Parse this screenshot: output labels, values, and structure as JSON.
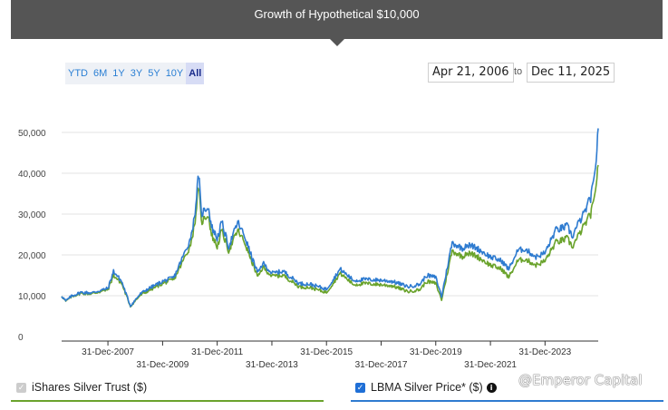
{
  "header": {
    "title": "Growth of Hypothetical $10,000"
  },
  "range_buttons": [
    "YTD",
    "6M",
    "1Y",
    "3Y",
    "5Y",
    "10Y",
    "All"
  ],
  "active_range": "All",
  "date_range": {
    "from": "Apr 21, 2006",
    "to_label": "to",
    "to": "Dec 11, 2025"
  },
  "legend": {
    "series1_label": "iShares Silver Trust ($)",
    "series2_label": "LBMA Silver Price* ($)",
    "series1_color": "#6aa32c",
    "series2_color": "#2e7bd0"
  },
  "watermark": "@Emperor Capital",
  "chart_data": {
    "type": "line",
    "ylim": [
      0,
      50000
    ],
    "yticks": [
      0,
      10000,
      20000,
      30000,
      40000,
      50000
    ],
    "ytick_labels": [
      "0",
      "10,000",
      "20,000",
      "30,000",
      "40,000",
      "50,000"
    ],
    "x_start": "2006-04-21",
    "x_end": "2025-12-11",
    "xtick_labels": [
      "31-Dec-2007",
      "31-Dec-2009",
      "31-Dec-2011",
      "31-Dec-2013",
      "31-Dec-2015",
      "31-Dec-2017",
      "31-Dec-2019",
      "31-Dec-2021",
      "31-Dec-2023"
    ],
    "xtick_dates": [
      "2007-12-31",
      "2009-12-31",
      "2011-12-31",
      "2013-12-31",
      "2015-12-31",
      "2017-12-31",
      "2019-12-31",
      "2021-12-31",
      "2023-12-31"
    ],
    "series": [
      {
        "name": "iShares Silver Trust ($)",
        "color": "#6aa32c",
        "x": [
          "2006-04-21",
          "2006-06-15",
          "2006-09-01",
          "2007-01-01",
          "2007-06-01",
          "2008-01-01",
          "2008-03-15",
          "2008-07-01",
          "2008-10-27",
          "2009-03-01",
          "2009-06-01",
          "2009-12-31",
          "2010-06-01",
          "2010-12-31",
          "2011-03-01",
          "2011-04-28",
          "2011-06-01",
          "2011-09-01",
          "2011-10-15",
          "2011-12-31",
          "2012-03-01",
          "2012-06-01",
          "2012-10-01",
          "2013-01-01",
          "2013-04-15",
          "2013-06-28",
          "2013-09-01",
          "2013-12-31",
          "2014-06-01",
          "2014-12-31",
          "2015-06-01",
          "2015-12-31",
          "2016-07-01",
          "2016-12-31",
          "2017-06-01",
          "2017-12-31",
          "2018-06-01",
          "2018-12-31",
          "2019-06-01",
          "2019-09-01",
          "2019-12-31",
          "2020-03-18",
          "2020-08-06",
          "2020-12-31",
          "2021-02-01",
          "2021-06-01",
          "2021-12-31",
          "2022-06-01",
          "2022-09-01",
          "2022-12-31",
          "2023-04-01",
          "2023-09-01",
          "2023-12-31",
          "2024-05-20",
          "2024-10-22",
          "2024-12-31",
          "2025-03-01",
          "2025-06-01",
          "2025-09-01",
          "2025-10-15",
          "2025-11-15",
          "2025-12-11"
        ],
        "y": [
          10000,
          8600,
          9800,
          10600,
          10500,
          11500,
          15000,
          13000,
          7400,
          10000,
          11000,
          13000,
          14000,
          22000,
          27000,
          37000,
          28000,
          30000,
          25000,
          22000,
          26000,
          21000,
          26000,
          23000,
          18000,
          14500,
          17000,
          14800,
          15000,
          12200,
          12000,
          10800,
          15500,
          12700,
          13000,
          12700,
          12400,
          11000,
          11500,
          13500,
          13000,
          9000,
          21000,
          19500,
          20500,
          20000,
          17500,
          16500,
          14500,
          18500,
          19000,
          17500,
          18500,
          23000,
          24000,
          22000,
          24000,
          27000,
          30000,
          33000,
          38000,
          42000
        ]
      },
      {
        "name": "LBMA Silver Price* ($)",
        "color": "#2e7bd0",
        "x": [
          "2006-04-21",
          "2006-06-15",
          "2006-09-01",
          "2007-01-01",
          "2007-06-01",
          "2008-01-01",
          "2008-03-15",
          "2008-07-01",
          "2008-10-27",
          "2009-03-01",
          "2009-06-01",
          "2009-12-31",
          "2010-06-01",
          "2010-12-31",
          "2011-03-01",
          "2011-04-28",
          "2011-06-01",
          "2011-09-01",
          "2011-10-15",
          "2011-12-31",
          "2012-03-01",
          "2012-06-01",
          "2012-10-01",
          "2013-01-01",
          "2013-04-15",
          "2013-06-28",
          "2013-09-01",
          "2013-12-31",
          "2014-06-01",
          "2014-12-31",
          "2015-06-01",
          "2015-12-31",
          "2016-07-01",
          "2016-12-31",
          "2017-06-01",
          "2017-12-31",
          "2018-06-01",
          "2018-12-31",
          "2019-06-01",
          "2019-09-01",
          "2019-12-31",
          "2020-03-18",
          "2020-08-06",
          "2020-12-31",
          "2021-02-01",
          "2021-06-01",
          "2021-12-31",
          "2022-06-01",
          "2022-09-01",
          "2022-12-31",
          "2023-04-01",
          "2023-09-01",
          "2023-12-31",
          "2024-05-20",
          "2024-10-22",
          "2024-12-31",
          "2025-03-01",
          "2025-06-01",
          "2025-09-01",
          "2025-10-15",
          "2025-11-15",
          "2025-12-11"
        ],
        "y": [
          10000,
          8700,
          9900,
          10800,
          10700,
          11800,
          16000,
          13500,
          7500,
          10300,
          11500,
          13500,
          14500,
          23500,
          29000,
          40000,
          30000,
          32000,
          27000,
          24000,
          28000,
          22000,
          28000,
          24500,
          19000,
          15500,
          18000,
          15500,
          16000,
          13000,
          12800,
          11600,
          16500,
          13700,
          14000,
          13800,
          13500,
          12200,
          12800,
          15000,
          14500,
          9800,
          23000,
          21500,
          22500,
          22000,
          19500,
          18500,
          16500,
          21000,
          21500,
          19500,
          20500,
          26000,
          27000,
          24500,
          27000,
          30000,
          34000,
          38000,
          44000,
          51000
        ]
      }
    ]
  }
}
